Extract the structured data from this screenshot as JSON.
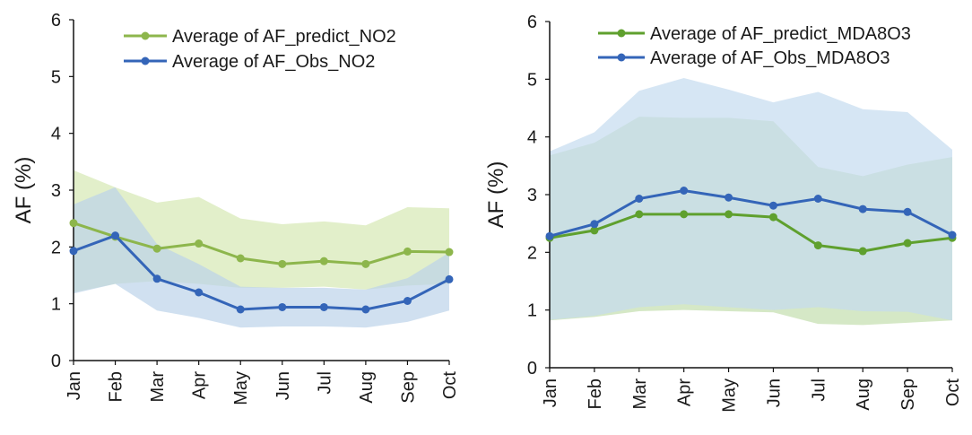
{
  "chart_data": [
    {
      "type": "line",
      "ylabel": "AF (%)",
      "xlabel": "",
      "ylim": [
        0,
        6
      ],
      "yticks": [
        "0",
        "1",
        "2",
        "3",
        "4",
        "5",
        "6"
      ],
      "categories": [
        "Jan",
        "Feb",
        "Mar",
        "Apr",
        "May",
        "Jun",
        "Jul",
        "Aug",
        "Sep",
        "Oct"
      ],
      "legend_position": "top",
      "grid": false,
      "series": [
        {
          "name": "Average of AF_predict_NO2",
          "color": "#8db64c",
          "band_color": "#d6e8b4",
          "values": [
            2.42,
            2.18,
            1.97,
            2.06,
            1.8,
            1.7,
            1.75,
            1.7,
            1.92,
            1.91
          ],
          "upper": [
            3.35,
            3.05,
            2.78,
            2.88,
            2.5,
            2.4,
            2.45,
            2.38,
            2.7,
            2.68
          ],
          "lower": [
            1.2,
            1.35,
            1.4,
            1.35,
            1.28,
            1.28,
            1.3,
            1.25,
            1.32,
            1.35
          ]
        },
        {
          "name": "Average of AF_Obs_NO2",
          "color": "#3465b8",
          "band_color": "#bcd3ea",
          "values": [
            1.93,
            2.2,
            1.44,
            1.2,
            0.9,
            0.94,
            0.94,
            0.9,
            1.05,
            1.43
          ],
          "upper": [
            2.75,
            3.05,
            2.05,
            1.7,
            1.3,
            1.28,
            1.28,
            1.25,
            1.45,
            1.9
          ],
          "lower": [
            1.18,
            1.35,
            0.88,
            0.75,
            0.58,
            0.6,
            0.6,
            0.58,
            0.68,
            0.88
          ]
        }
      ]
    },
    {
      "type": "line",
      "ylabel": "AF (%)",
      "xlabel": "",
      "ylim": [
        0,
        6
      ],
      "yticks": [
        "0",
        "1",
        "2",
        "3",
        "4",
        "5",
        "6"
      ],
      "categories": [
        "Jan",
        "Feb",
        "Mar",
        "Apr",
        "May",
        "Jun",
        "Jul",
        "Aug",
        "Sep",
        "Oct"
      ],
      "legend_position": "top",
      "grid": false,
      "series": [
        {
          "name": "Average of AF_predict_MDA8O3",
          "color": "#5fa02e",
          "band_color": "#c3deae",
          "values": [
            2.25,
            2.38,
            2.66,
            2.66,
            2.66,
            2.61,
            2.12,
            2.02,
            2.16,
            2.25
          ],
          "upper": [
            3.68,
            3.9,
            4.35,
            4.33,
            4.33,
            4.27,
            3.48,
            3.32,
            3.52,
            3.65
          ],
          "lower": [
            0.82,
            0.88,
            0.98,
            1.0,
            0.98,
            0.96,
            0.76,
            0.74,
            0.78,
            0.82
          ]
        },
        {
          "name": "Average of AF_Obs_MDA8O3",
          "color": "#3465b8",
          "band_color": "#c5dbef",
          "values": [
            2.28,
            2.49,
            2.93,
            3.07,
            2.95,
            2.81,
            2.93,
            2.75,
            2.7,
            2.3
          ],
          "upper": [
            3.75,
            4.08,
            4.8,
            5.02,
            4.82,
            4.6,
            4.78,
            4.48,
            4.43,
            3.78
          ],
          "lower": [
            0.83,
            0.9,
            1.05,
            1.1,
            1.05,
            1.0,
            1.05,
            0.98,
            0.97,
            0.82
          ]
        }
      ]
    }
  ]
}
